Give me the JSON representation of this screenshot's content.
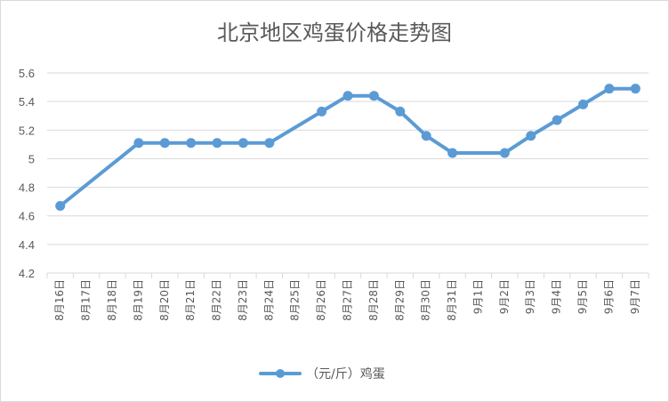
{
  "chart_data": {
    "type": "line",
    "title": "北京地区鸡蛋价格走势图",
    "xlabel": "",
    "ylabel": "",
    "ylim": [
      4.2,
      5.6
    ],
    "yticks": [
      "4.2",
      "4.4",
      "4.6",
      "4.8",
      "5",
      "5.2",
      "5.4",
      "5.6"
    ],
    "grid": true,
    "legend_position": "bottom",
    "categories": [
      "8月16日",
      "8月17日",
      "8月18日",
      "8月19日",
      "8月20日",
      "8月21日",
      "8月22日",
      "8月23日",
      "8月24日",
      "8月25日",
      "8月26日",
      "8月27日",
      "8月28日",
      "8月29日",
      "8月30日",
      "8月31日",
      "9月1日",
      "9月2日",
      "9月3日",
      "9月4日",
      "9月5日",
      "9月6日",
      "9月7日"
    ],
    "series": [
      {
        "name": "（元/斤）鸡蛋",
        "color": "#5b9bd5",
        "values": [
          4.67,
          null,
          null,
          5.11,
          5.11,
          5.11,
          5.11,
          5.11,
          5.11,
          null,
          5.33,
          5.44,
          5.44,
          5.33,
          5.16,
          5.04,
          null,
          5.04,
          5.16,
          5.27,
          5.38,
          5.49,
          5.49
        ]
      }
    ]
  }
}
